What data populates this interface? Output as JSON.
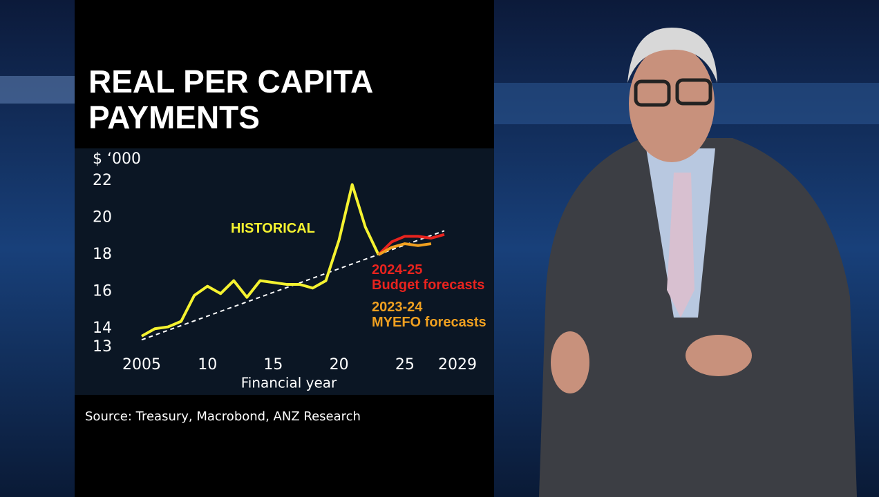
{
  "chart_data": {
    "type": "line",
    "title": "REAL PER CAPITA PAYMENTS",
    "y_label": "$ ‘000",
    "x_label": "Financial year",
    "source": "Source: Treasury, Macrobond, ANZ Research",
    "xlim": [
      2005,
      2029
    ],
    "xticks": [
      2005,
      {
        "value": 2010,
        "label": "10"
      },
      {
        "value": 2015,
        "label": "15"
      },
      {
        "value": 2020,
        "label": "20"
      },
      {
        "value": 2025,
        "label": "25"
      },
      2029
    ],
    "ylim": [
      13,
      22
    ],
    "yticks": [
      13,
      14,
      16,
      18,
      20,
      22
    ],
    "series": [
      {
        "color": "#ffffff",
        "dash": true,
        "x": [
          2005,
          2028
        ],
        "values": [
          13.4,
          19.3
        ]
      },
      {
        "name": "HISTORICAL",
        "color": "#f5f230",
        "x": [
          2005,
          2006,
          2007,
          2008,
          2009,
          2010,
          2011,
          2012,
          2013,
          2014,
          2015,
          2016,
          2017,
          2018,
          2019,
          2020,
          2021,
          2022,
          2023
        ],
        "values": [
          13.6,
          14.0,
          14.1,
          14.4,
          15.8,
          16.3,
          15.9,
          16.6,
          15.7,
          16.6,
          16.5,
          16.4,
          16.4,
          16.2,
          16.6,
          18.8,
          21.8,
          19.5,
          18.0
        ]
      },
      {
        "name": "2024-25\nBudget forecasts",
        "color": "#e8231e",
        "x": [
          2023,
          2024,
          2025,
          2026,
          2027,
          2028
        ],
        "values": [
          18.0,
          18.7,
          19.0,
          19.0,
          18.9,
          19.1
        ]
      },
      {
        "name": "2023-24\nMYEFO forecasts",
        "color": "#f0a020",
        "x": [
          2023,
          2024,
          2025,
          2026,
          2027
        ],
        "values": [
          18.0,
          18.4,
          18.6,
          18.5,
          18.6
        ]
      }
    ]
  }
}
